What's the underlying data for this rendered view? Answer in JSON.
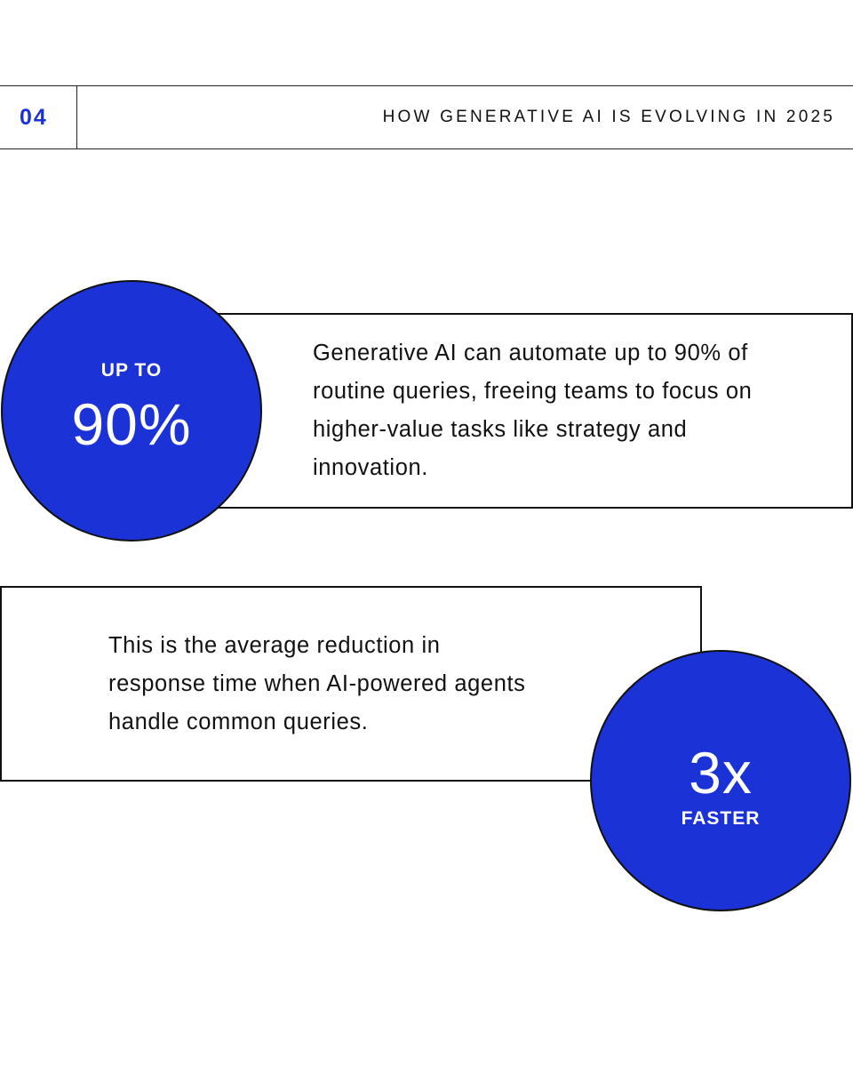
{
  "header": {
    "number": "04",
    "title": "HOW GENERATIVE AI IS EVOLVING IN 2025"
  },
  "stats": [
    {
      "label_top": "UP TO",
      "value": "90%",
      "text": "Generative AI can automate up to 90% of routine queries, freeing teams to focus on higher-value tasks like strategy and innovation."
    },
    {
      "value": "3x",
      "label_bottom": "FASTER",
      "text": "This is the average reduction in response time when AI-powered agents handle common queries."
    }
  ]
}
